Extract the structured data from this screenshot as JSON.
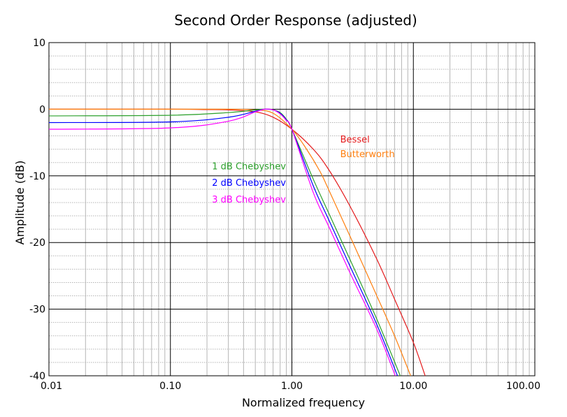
{
  "chart_data": {
    "type": "line",
    "title": "Second Order Response (adjusted)",
    "xlabel": "Normalized frequency",
    "ylabel": "Amplitude (dB)",
    "x_scale": "log",
    "xlim": [
      0.01,
      100
    ],
    "ylim": [
      -40,
      10
    ],
    "x_ticks": [
      {
        "value": 0.01,
        "label": "0.01"
      },
      {
        "value": 0.1,
        "label": "0.10"
      },
      {
        "value": 1,
        "label": "1.00"
      },
      {
        "value": 10,
        "label": "10.00"
      },
      {
        "value": 100,
        "label": "100.00"
      }
    ],
    "y_ticks": [
      {
        "value": 10,
        "label": "10"
      },
      {
        "value": 0,
        "label": "0"
      },
      {
        "value": -10,
        "label": "-10"
      },
      {
        "value": -20,
        "label": "-20"
      },
      {
        "value": -30,
        "label": "-30"
      },
      {
        "value": -40,
        "label": "-40"
      }
    ],
    "grid": true,
    "series": [
      {
        "name": "Bessel",
        "color": "#e41a1c",
        "x": [
          0.01,
          0.1,
          0.2,
          0.3,
          0.5,
          0.7,
          1.0,
          1.5,
          2,
          3,
          5,
          7,
          10,
          12.5
        ],
        "y": [
          0,
          0,
          -0.05,
          -0.1,
          -0.4,
          -1.2,
          -3.0,
          -6.0,
          -9.0,
          -14.5,
          -22.5,
          -28.5,
          -35.0,
          -40.0
        ]
      },
      {
        "name": "Butterworth",
        "color": "#ff7f0e",
        "x": [
          0.01,
          0.1,
          0.3,
          0.5,
          0.7,
          1.0,
          1.3,
          1.7,
          2,
          3,
          5,
          7,
          9.5
        ],
        "y": [
          0,
          0,
          0,
          -0.1,
          -0.6,
          -3.0,
          -5.8,
          -9.3,
          -12.0,
          -19.0,
          -28.0,
          -34.0,
          -40.0
        ]
      },
      {
        "name": "1 dB Chebyshev",
        "color": "#2ca02c",
        "x": [
          0.01,
          0.1,
          0.3,
          0.5,
          0.6,
          0.7,
          0.8,
          0.9,
          1.0,
          1.5,
          2,
          3,
          5,
          7.8
        ],
        "y": [
          -1.0,
          -0.9,
          -0.5,
          -0.1,
          0,
          -0.1,
          -0.5,
          -1.5,
          -3.0,
          -10.5,
          -15.5,
          -22.5,
          -31.5,
          -40.0
        ]
      },
      {
        "name": "2 dB Chebyshev",
        "color": "#0000ff",
        "x": [
          0.01,
          0.1,
          0.3,
          0.5,
          0.6,
          0.7,
          0.8,
          0.9,
          1.0,
          1.5,
          2,
          3,
          5,
          7.4
        ],
        "y": [
          -2.0,
          -1.9,
          -1.2,
          -0.3,
          0,
          -0.1,
          -0.6,
          -1.6,
          -3.0,
          -11.5,
          -16.5,
          -23.5,
          -32.3,
          -40.0
        ]
      },
      {
        "name": "3 dB Chebyshev",
        "color": "#ff00ff",
        "x": [
          0.01,
          0.1,
          0.3,
          0.5,
          0.6,
          0.7,
          0.8,
          0.9,
          1.0,
          1.5,
          2,
          3,
          5,
          7.1
        ],
        "y": [
          -3.0,
          -2.8,
          -1.8,
          -0.4,
          0,
          -0.1,
          -0.7,
          -1.7,
          -3.0,
          -12.5,
          -17.5,
          -24.5,
          -33.0,
          -40.0
        ]
      }
    ],
    "annotations": [
      {
        "text": "1 dB Chebyshev",
        "color": "#2ca02c",
        "x": 0.22,
        "y": -9.0
      },
      {
        "text": "2 dB Chebyshev",
        "color": "#0000ff",
        "x": 0.22,
        "y": -11.5
      },
      {
        "text": "3 dB Chebyshev",
        "color": "#ff00ff",
        "x": 0.22,
        "y": -14.0
      },
      {
        "text": "Bessel",
        "color": "#e41a1c",
        "x": 2.5,
        "y": -5.0
      },
      {
        "text": "Butterworth",
        "color": "#ff7f0e",
        "x": 2.5,
        "y": -7.2
      }
    ]
  }
}
